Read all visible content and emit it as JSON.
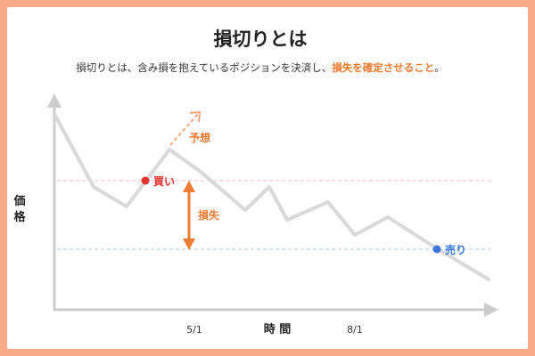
{
  "title": "損切りとは",
  "subtitle": {
    "main": "損切りとは、含み損を抱えているポジションを決済し、",
    "highlight": "損失を確定させること",
    "end": "。"
  },
  "axes": {
    "y_label": "価格",
    "x_label": "時 間",
    "x_ticks": [
      "5/1",
      "8/1"
    ]
  },
  "annotations": {
    "buy": "買い",
    "sell": "売り",
    "loss": "損失",
    "forecast": "予想"
  },
  "colors": {
    "background": "#f7a98a",
    "accent": "#f07b32",
    "buy": "#e8322e",
    "sell": "#3a78e0",
    "line": "#d9d9d9",
    "buy_guide": "#f7b9c4",
    "sell_guide": "#a9c8f0"
  }
}
